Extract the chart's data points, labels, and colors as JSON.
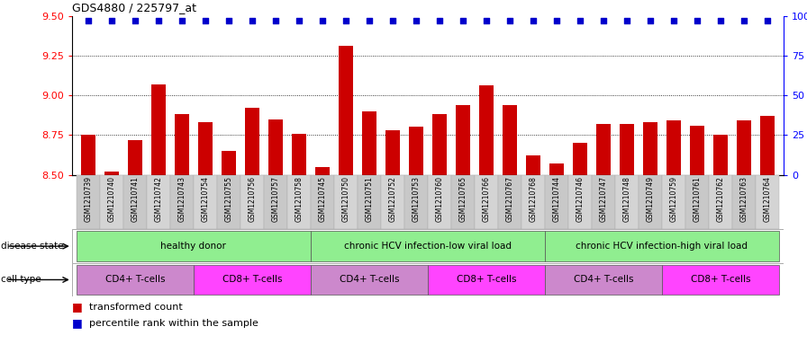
{
  "title": "GDS4880 / 225797_at",
  "samples": [
    "GSM1210739",
    "GSM1210740",
    "GSM1210741",
    "GSM1210742",
    "GSM1210743",
    "GSM1210754",
    "GSM1210755",
    "GSM1210756",
    "GSM1210757",
    "GSM1210758",
    "GSM1210745",
    "GSM1210750",
    "GSM1210751",
    "GSM1210752",
    "GSM1210753",
    "GSM1210760",
    "GSM1210765",
    "GSM1210766",
    "GSM1210767",
    "GSM1210768",
    "GSM1210744",
    "GSM1210746",
    "GSM1210747",
    "GSM1210748",
    "GSM1210749",
    "GSM1210759",
    "GSM1210761",
    "GSM1210762",
    "GSM1210763",
    "GSM1210764"
  ],
  "bar_values": [
    8.75,
    8.52,
    8.72,
    9.07,
    8.88,
    8.83,
    8.65,
    8.92,
    8.85,
    8.76,
    8.55,
    9.31,
    8.9,
    8.78,
    8.8,
    8.88,
    8.94,
    9.06,
    8.94,
    8.62,
    8.57,
    8.7,
    8.82,
    8.82,
    8.83,
    8.84,
    8.81,
    8.75,
    8.84,
    8.87
  ],
  "percentile_values": [
    97,
    97,
    97,
    97,
    97,
    97,
    97,
    97,
    97,
    97,
    97,
    97,
    97,
    97,
    97,
    97,
    97,
    97,
    97,
    97,
    97,
    97,
    97,
    97,
    97,
    97,
    97,
    97,
    97,
    97
  ],
  "bar_color": "#cc0000",
  "dot_color": "#0000cc",
  "ylim_left": [
    8.5,
    9.5
  ],
  "ylim_right": [
    0,
    100
  ],
  "yticks_left": [
    8.5,
    8.75,
    9.0,
    9.25,
    9.5
  ],
  "yticks_right": [
    0,
    25,
    50,
    75,
    100
  ],
  "grid_values": [
    8.75,
    9.0,
    9.25
  ],
  "disease_groups": [
    {
      "label": "healthy donor",
      "start": 0,
      "end": 9
    },
    {
      "label": "chronic HCV infection-low viral load",
      "start": 10,
      "end": 19
    },
    {
      "label": "chronic HCV infection-high viral load",
      "start": 20,
      "end": 29
    }
  ],
  "disease_group_color": "#90EE90",
  "cell_type_groups": [
    {
      "label": "CD4+ T-cells",
      "start": 0,
      "end": 4,
      "color": "#CC88CC"
    },
    {
      "label": "CD8+ T-cells",
      "start": 5,
      "end": 9,
      "color": "#FF44FF"
    },
    {
      "label": "CD4+ T-cells",
      "start": 10,
      "end": 14,
      "color": "#CC88CC"
    },
    {
      "label": "CD8+ T-cells",
      "start": 15,
      "end": 19,
      "color": "#FF44FF"
    },
    {
      "label": "CD4+ T-cells",
      "start": 20,
      "end": 24,
      "color": "#CC88CC"
    },
    {
      "label": "CD8+ T-cells",
      "start": 25,
      "end": 29,
      "color": "#FF44FF"
    }
  ],
  "legend_transformed": "transformed count",
  "legend_percentile": "percentile rank within the sample",
  "bg_color": "#ffffff",
  "sample_bg_color": "#d4d4d4",
  "disease_state_label": "disease state",
  "cell_type_label": "cell type"
}
